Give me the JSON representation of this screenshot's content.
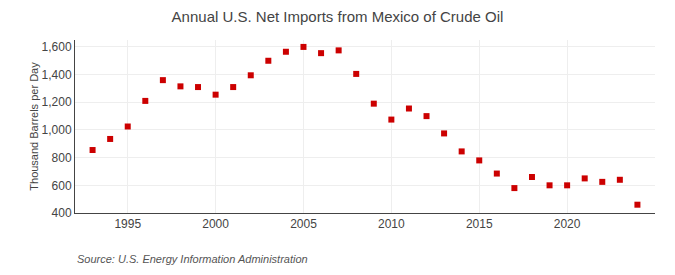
{
  "chart_data": {
    "type": "scatter",
    "title": "Annual U.S. Net Imports from Mexico of Crude Oil",
    "ylabel": "Thousand Barrels per Day",
    "annotations": [
      "Source: U.S. Energy Information Administration"
    ],
    "x": [
      1993,
      1994,
      1995,
      1996,
      1997,
      1998,
      1999,
      2000,
      2001,
      2002,
      2003,
      2004,
      2005,
      2006,
      2007,
      2008,
      2009,
      2010,
      2011,
      2012,
      2013,
      2014,
      2015,
      2016,
      2017,
      2018,
      2019,
      2020,
      2021,
      2022,
      2023,
      2024
    ],
    "values": [
      855,
      935,
      1025,
      1210,
      1360,
      1315,
      1310,
      1255,
      1310,
      1395,
      1500,
      1565,
      1600,
      1555,
      1575,
      1405,
      1190,
      1075,
      1155,
      1100,
      975,
      845,
      780,
      685,
      580,
      660,
      600,
      600,
      650,
      625,
      640,
      460
    ],
    "color": "#cc0000",
    "marker": "square",
    "xlim": [
      1992,
      2025
    ],
    "xticks": [
      1995,
      2000,
      2005,
      2010,
      2015,
      2020
    ],
    "ylim": [
      400,
      1650
    ],
    "yticks": [
      400,
      600,
      800,
      {
        "value": 1000,
        "label": "1,000"
      },
      {
        "value": 1200,
        "label": "1,200"
      },
      {
        "value": 1400,
        "label": "1,400"
      },
      {
        "value": 1600,
        "label": "1,600"
      }
    ],
    "grid": true
  }
}
